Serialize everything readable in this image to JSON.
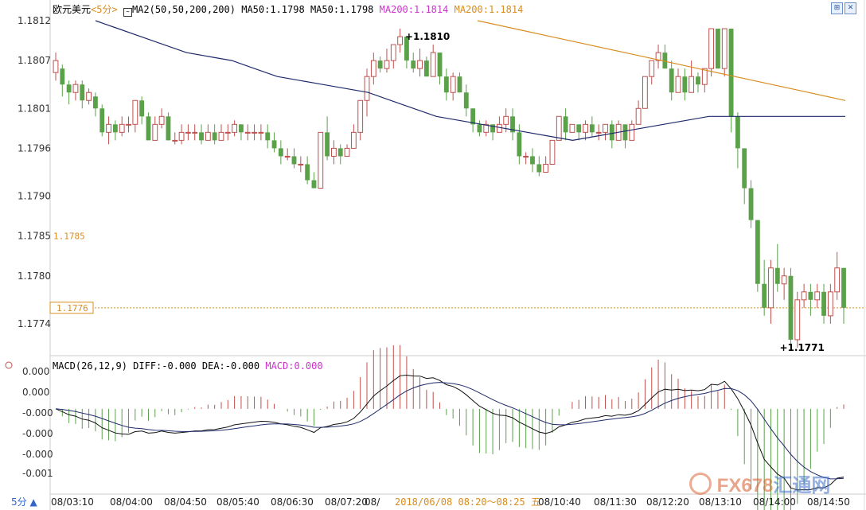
{
  "header": {
    "instrument": "欧元美元",
    "period_tag": "<5分>",
    "ma_indicator": "MA2(50,50,200,200)",
    "ma50_a": "MA50:1.1798",
    "ma50_b": "MA50:1.1798",
    "ma200_a": "MA200:1.1814",
    "ma200_b": "MA200:1.1814"
  },
  "toolbar": {
    "zoom_in_icon": "magnify-icon",
    "close_icon": "close-icon"
  },
  "macd_header": {
    "label": "MACD(26,12,9)",
    "diff": "DIFF:-0.000",
    "dea": "DEA:-0.000",
    "macd": "MACD:0.000"
  },
  "period_button": "5分 ▲",
  "watermark": {
    "text": "FX678",
    "cn": "汇通网"
  },
  "colors": {
    "up": "#c0504d",
    "down": "#5aa14a",
    "ma50": "#1f2a6b",
    "ma200": "#d98c1e",
    "macd_pos": "#c0504d",
    "macd_neg": "#5aa14a",
    "ma200_label": "#cc33cc",
    "ref_line": "#d98c1e"
  },
  "chart_data": [
    {
      "type": "candlestick",
      "title": "欧元美元 5分",
      "y_ticks": [
        "1.1812",
        "1.1807",
        "1.1801",
        "1.1796",
        "1.1790",
        "1.1785",
        "1.1780",
        "1.1774"
      ],
      "ylim": [
        1.177,
        1.1813
      ],
      "x_ticks": [
        "08/03:10",
        "08/04:00",
        "08/04:50",
        "08/05:40",
        "08/06:30",
        "08/07:20",
        "08/",
        "08/10:40",
        "08/11:30",
        "08/12:20",
        "08/13:10",
        "08/14:00",
        "08/14:50"
      ],
      "x_highlight": "2018/06/08 08:20～08:25 五",
      "price_labels": {
        "ref1": "1.1785",
        "ref2": "1.1776",
        "high": "1.1810",
        "low": "1.1771"
      },
      "high_value": 1.181,
      "low_value": 1.1771,
      "ref_line_value": 1.1776,
      "candles": [
        [
          1.18055,
          1.1807,
          1.18045,
          1.1808
        ],
        [
          1.1806,
          1.1804,
          1.18025,
          1.18065
        ],
        [
          1.1804,
          1.1803,
          1.18015,
          1.18045
        ],
        [
          1.1803,
          1.1804,
          1.1802,
          1.18045
        ],
        [
          1.1804,
          1.1802,
          1.1801,
          1.18045
        ],
        [
          1.1802,
          1.1803,
          1.18015,
          1.18035
        ],
        [
          1.18025,
          1.1801,
          1.18,
          1.1803
        ],
        [
          1.1801,
          1.1798,
          1.17975,
          1.18015
        ],
        [
          1.1798,
          1.1799,
          1.17965,
          1.18
        ],
        [
          1.1799,
          1.1798,
          1.1797,
          1.17995
        ],
        [
          1.1798,
          1.1799,
          1.17975,
          1.18
        ],
        [
          1.1799,
          1.1799,
          1.1798,
          1.18
        ],
        [
          1.1799,
          1.1802,
          1.1798,
          1.1802
        ],
        [
          1.1802,
          1.18,
          1.1799,
          1.18025
        ],
        [
          1.18,
          1.1797,
          1.1797,
          1.18005
        ],
        [
          1.1797,
          1.1799,
          1.1797,
          1.18
        ],
        [
          1.1799,
          1.18,
          1.17985,
          1.1801
        ],
        [
          1.18,
          1.1797,
          1.1797,
          1.18005
        ],
        [
          1.1797,
          1.1797,
          1.17965,
          1.1798
        ],
        [
          1.1797,
          1.1798,
          1.17965,
          1.1799
        ],
        [
          1.1798,
          1.1798,
          1.1797,
          1.1799
        ],
        [
          1.1798,
          1.1798,
          1.1797,
          1.1799
        ],
        [
          1.1798,
          1.1797,
          1.17965,
          1.1799
        ],
        [
          1.1797,
          1.1798,
          1.1797,
          1.1799
        ],
        [
          1.1798,
          1.1797,
          1.17965,
          1.1799
        ],
        [
          1.1797,
          1.1798,
          1.1797,
          1.1799
        ],
        [
          1.1798,
          1.1798,
          1.1797,
          1.1799
        ],
        [
          1.1798,
          1.1799,
          1.17975,
          1.17995
        ],
        [
          1.1799,
          1.1798,
          1.1797,
          1.1799
        ],
        [
          1.1798,
          1.1798,
          1.1797,
          1.1799
        ],
        [
          1.1798,
          1.1798,
          1.1797,
          1.1799
        ],
        [
          1.1798,
          1.1798,
          1.1797,
          1.1799
        ],
        [
          1.1798,
          1.1797,
          1.1796,
          1.1799
        ],
        [
          1.1797,
          1.1796,
          1.17955,
          1.1798
        ],
        [
          1.1796,
          1.1795,
          1.1794,
          1.1797
        ],
        [
          1.1795,
          1.1795,
          1.17945,
          1.1796
        ],
        [
          1.1795,
          1.1794,
          1.17935,
          1.1796
        ],
        [
          1.1794,
          1.1794,
          1.1793,
          1.1795
        ],
        [
          1.1794,
          1.1792,
          1.17915,
          1.1795
        ],
        [
          1.1792,
          1.1791,
          1.1791,
          1.1793
        ],
        [
          1.1791,
          1.1798,
          1.1791,
          1.1798
        ],
        [
          1.1798,
          1.1795,
          1.17945,
          1.18
        ],
        [
          1.1795,
          1.1796,
          1.1794,
          1.1797
        ],
        [
          1.1796,
          1.1795,
          1.1794,
          1.17965
        ],
        [
          1.1795,
          1.1796,
          1.1795,
          1.17965
        ],
        [
          1.1796,
          1.1798,
          1.1796,
          1.1799
        ],
        [
          1.1798,
          1.1802,
          1.1797,
          1.1802
        ],
        [
          1.1802,
          1.1805,
          1.18,
          1.1806
        ],
        [
          1.1805,
          1.1807,
          1.1804,
          1.1808
        ],
        [
          1.1807,
          1.1806,
          1.18055,
          1.18075
        ],
        [
          1.1806,
          1.1807,
          1.18055,
          1.18085
        ],
        [
          1.1807,
          1.1809,
          1.1806,
          1.1809
        ],
        [
          1.1809,
          1.181,
          1.1808,
          1.1811
        ],
        [
          1.181,
          1.1807,
          1.1806,
          1.181
        ],
        [
          1.1807,
          1.1806,
          1.18055,
          1.1808
        ],
        [
          1.1806,
          1.1807,
          1.1805,
          1.18085
        ],
        [
          1.1807,
          1.1805,
          1.1805,
          1.18075
        ],
        [
          1.1805,
          1.1808,
          1.1805,
          1.1809
        ],
        [
          1.1808,
          1.1805,
          1.1804,
          1.1808
        ],
        [
          1.1805,
          1.1803,
          1.1802,
          1.1806
        ],
        [
          1.1803,
          1.1805,
          1.1802,
          1.18055
        ],
        [
          1.1805,
          1.1803,
          1.1803,
          1.18055
        ],
        [
          1.1803,
          1.1801,
          1.18,
          1.1804
        ],
        [
          1.1801,
          1.1799,
          1.1798,
          1.1801
        ],
        [
          1.1799,
          1.1798,
          1.17975,
          1.17995
        ],
        [
          1.1798,
          1.1799,
          1.17975,
          1.17995
        ],
        [
          1.1799,
          1.1798,
          1.1797,
          1.1799
        ],
        [
          1.1798,
          1.1799,
          1.1798,
          1.18
        ],
        [
          1.1799,
          1.18,
          1.1798,
          1.1801
        ],
        [
          1.18,
          1.1798,
          1.1797,
          1.1801
        ],
        [
          1.1798,
          1.1795,
          1.1794,
          1.1799
        ],
        [
          1.1795,
          1.1795,
          1.1794,
          1.17955
        ],
        [
          1.1795,
          1.1794,
          1.1793,
          1.1796
        ],
        [
          1.1794,
          1.1793,
          1.17925,
          1.1795
        ],
        [
          1.1793,
          1.1794,
          1.1793,
          1.1795
        ],
        [
          1.1794,
          1.1797,
          1.1794,
          1.1797
        ],
        [
          1.1797,
          1.18,
          1.1797,
          1.18
        ],
        [
          1.18,
          1.1798,
          1.1797,
          1.1801
        ],
        [
          1.1798,
          1.1799,
          1.1798,
          1.1799
        ],
        [
          1.1799,
          1.1798,
          1.1797,
          1.1799
        ],
        [
          1.1798,
          1.1799,
          1.1797,
          1.17995
        ],
        [
          1.1799,
          1.1798,
          1.17975,
          1.18
        ],
        [
          1.1798,
          1.1798,
          1.1797,
          1.1799
        ],
        [
          1.1798,
          1.1799,
          1.1797,
          1.1799
        ],
        [
          1.1799,
          1.1797,
          1.1796,
          1.17995
        ],
        [
          1.1797,
          1.1799,
          1.1797,
          1.17995
        ],
        [
          1.1799,
          1.1797,
          1.1796,
          1.1799
        ],
        [
          1.1797,
          1.1799,
          1.1797,
          1.17995
        ],
        [
          1.1799,
          1.1801,
          1.1799,
          1.1802
        ],
        [
          1.1801,
          1.1805,
          1.1801,
          1.1805
        ],
        [
          1.1805,
          1.1807,
          1.1804,
          1.1807
        ],
        [
          1.1807,
          1.1808,
          1.1806,
          1.1809
        ],
        [
          1.1808,
          1.1806,
          1.1806,
          1.1809
        ],
        [
          1.1806,
          1.1803,
          1.1802,
          1.1807
        ],
        [
          1.1803,
          1.1805,
          1.1803,
          1.1806
        ],
        [
          1.1805,
          1.1803,
          1.1802,
          1.1806
        ],
        [
          1.1803,
          1.1805,
          1.1803,
          1.1807
        ],
        [
          1.1805,
          1.1804,
          1.1803,
          1.18055
        ],
        [
          1.1804,
          1.1806,
          1.1803,
          1.1806
        ],
        [
          1.1806,
          1.1811,
          1.1805,
          1.1811
        ],
        [
          1.1811,
          1.1806,
          1.1806,
          1.1811
        ],
        [
          1.1806,
          1.1811,
          1.1805,
          1.1811
        ],
        [
          1.1811,
          1.18,
          1.1798,
          1.1811
        ],
        [
          1.18,
          1.1796,
          1.17935,
          1.18005
        ],
        [
          1.1796,
          1.1791,
          1.1789,
          1.1796
        ],
        [
          1.1791,
          1.1787,
          1.1786,
          1.1792
        ],
        [
          1.1787,
          1.1779,
          1.1778,
          1.1787
        ],
        [
          1.1779,
          1.1776,
          1.1775,
          1.1782
        ],
        [
          1.1776,
          1.1781,
          1.1774,
          1.1782
        ],
        [
          1.1781,
          1.1779,
          1.1778,
          1.1784
        ],
        [
          1.1779,
          1.178,
          1.1777,
          1.1781
        ],
        [
          1.178,
          1.1772,
          1.1771,
          1.1781
        ],
        [
          1.1772,
          1.1777,
          1.1771,
          1.1778
        ],
        [
          1.1777,
          1.1778,
          1.1776,
          1.1779
        ],
        [
          1.1778,
          1.1777,
          1.1775,
          1.1779
        ],
        [
          1.1777,
          1.1778,
          1.1776,
          1.1779
        ],
        [
          1.1778,
          1.1775,
          1.1774,
          1.1779
        ],
        [
          1.1775,
          1.1778,
          1.1774,
          1.1779
        ],
        [
          1.1778,
          1.1781,
          1.1777,
          1.1783
        ],
        [
          1.1781,
          1.1776,
          1.1774,
          1.1781
        ]
      ],
      "ma50": [
        1.1812,
        1.1811,
        1.181,
        1.1809,
        1.1808,
        1.18075,
        1.1807,
        1.1806,
        1.1805,
        1.18045,
        1.1804,
        1.18035,
        1.1803,
        1.1802,
        1.1801,
        1.18,
        1.17995,
        1.1799,
        1.17985,
        1.1798,
        1.17975,
        1.1797,
        1.17975,
        1.1798,
        1.17985,
        1.1799,
        1.17995,
        1.18,
        1.18,
        1.18,
        1.18,
        1.18,
        1.18,
        1.18
      ],
      "ma200": [
        1.1812,
        1.1811,
        1.181,
        1.1809,
        1.1808,
        1.1807,
        1.1806,
        1.1805,
        1.1804,
        1.1803,
        1.1802
      ],
      "macd": {
        "ylim": [
          -0.0012,
          0.0001
        ],
        "y_ticks": [
          "0.000",
          "0.000",
          "-0.000",
          "-0.000",
          "-0.000",
          "-0.001"
        ]
      }
    }
  ]
}
